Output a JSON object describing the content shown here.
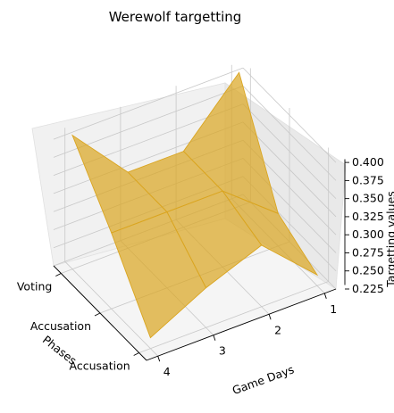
{
  "chart_data": {
    "type": "surface3d",
    "title": "Werewolf targetting",
    "xlabel": "Game Days",
    "ylabel": "Phases",
    "zlabel": "Targetting values",
    "x": [
      1,
      2,
      3,
      4
    ],
    "x_ticks": [
      "1",
      "2",
      "3",
      "4"
    ],
    "y_ticks": [
      "Voting",
      "Accusation",
      "Accusation"
    ],
    "z_ticks": [
      "0.225",
      "0.250",
      "0.275",
      "0.300",
      "0.325",
      "0.350",
      "0.375",
      "0.400"
    ],
    "zlim": [
      0.225,
      0.41
    ],
    "surface": {
      "rows": [
        "Voting",
        "Accusation",
        "Accusation"
      ],
      "values": [
        [
          0.41,
          0.33,
          0.33,
          0.41
        ],
        [
          0.27,
          0.33,
          0.33,
          0.33
        ],
        [
          0.24,
          0.31,
          0.28,
          0.24
        ]
      ]
    },
    "surface_color": "#daa520",
    "grid": true
  }
}
